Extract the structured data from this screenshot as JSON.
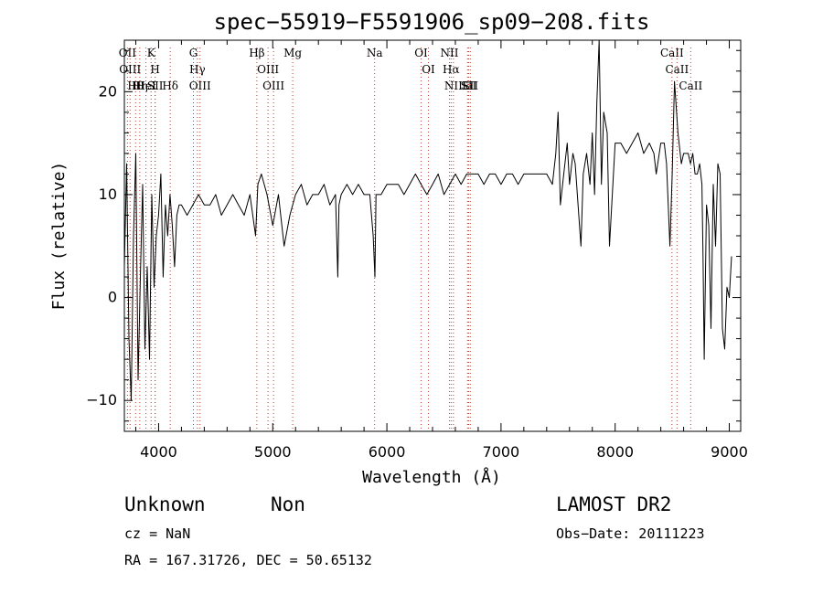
{
  "chart_data": {
    "type": "line",
    "title": "spec−55919−F5591906_sp09−208.fits",
    "xlabel": "Wavelength (Å)",
    "ylabel": "Flux (relative)",
    "xlim": [
      3700,
      9100
    ],
    "ylim": [
      -13,
      25
    ],
    "xticks": [
      4000,
      5000,
      6000,
      7000,
      8000,
      9000
    ],
    "yticks": [
      -10,
      0,
      10,
      20
    ],
    "ytick_labels": [
      "−10",
      "0",
      "10",
      "20"
    ],
    "grid": false,
    "line_color": "#000000",
    "marker_color": "#c0392b",
    "series": [
      {
        "x": [
          3700,
          3720,
          3740,
          3760,
          3780,
          3800,
          3820,
          3840,
          3860,
          3880,
          3900,
          3920,
          3940,
          3960,
          3980,
          4000,
          4020,
          4040,
          4060,
          4080,
          4100,
          4120,
          4140,
          4160,
          4180,
          4200,
          4250,
          4300,
          4350,
          4400,
          4450,
          4500,
          4550,
          4600,
          4650,
          4700,
          4750,
          4800,
          4850,
          4870,
          4900,
          4950,
          5000,
          5050,
          5100,
          5150,
          5200,
          5250,
          5300,
          5350,
          5400,
          5450,
          5500,
          5550,
          5570,
          5580,
          5600,
          5650,
          5700,
          5750,
          5800,
          5850,
          5880,
          5895,
          5905,
          5950,
          6000,
          6050,
          6100,
          6150,
          6200,
          6250,
          6300,
          6350,
          6400,
          6450,
          6500,
          6550,
          6600,
          6650,
          6700,
          6750,
          6800,
          6850,
          6900,
          6950,
          7000,
          7050,
          7100,
          7150,
          7200,
          7250,
          7300,
          7350,
          7400,
          7450,
          7480,
          7500,
          7520,
          7550,
          7580,
          7600,
          7630,
          7650,
          7700,
          7720,
          7750,
          7780,
          7800,
          7820,
          7840,
          7860,
          7880,
          7900,
          7930,
          7950,
          8000,
          8050,
          8100,
          8150,
          8200,
          8250,
          8300,
          8340,
          8360,
          8400,
          8430,
          8450,
          8480,
          8500,
          8520,
          8550,
          8580,
          8600,
          8620,
          8640,
          8660,
          8680,
          8700,
          8720,
          8740,
          8760,
          8770,
          8780,
          8800,
          8820,
          8840,
          8860,
          8880,
          8900,
          8920,
          8940,
          8960,
          8980,
          9000,
          9020
        ],
        "y": [
          3,
          13,
          -4,
          -10,
          6,
          14,
          -8,
          2,
          11,
          -5,
          3,
          -6,
          10,
          1,
          6,
          8,
          12,
          2,
          9,
          6,
          10,
          7,
          3,
          8,
          9,
          9,
          8,
          9,
          10,
          9,
          9,
          10,
          8,
          9,
          10,
          9,
          8,
          10,
          6,
          11,
          12,
          10,
          7,
          10,
          5,
          8,
          10,
          11,
          9,
          10,
          10,
          11,
          9,
          10,
          2,
          9,
          10,
          11,
          10,
          11,
          10,
          10,
          6,
          2,
          10,
          10,
          11,
          11,
          11,
          10,
          11,
          12,
          11,
          10,
          11,
          12,
          10,
          11,
          12,
          11,
          12,
          12,
          12,
          11,
          12,
          12,
          11,
          12,
          12,
          11,
          12,
          12,
          12,
          12,
          12,
          11,
          14,
          18,
          9,
          12,
          15,
          11,
          14,
          13,
          5,
          12,
          14,
          11,
          16,
          10,
          19,
          26,
          11,
          18,
          16,
          5,
          15,
          15,
          14,
          15,
          16,
          14,
          15,
          14,
          12,
          15,
          15,
          13,
          5,
          12,
          21,
          16,
          13,
          14,
          14,
          14,
          13,
          14,
          12,
          12,
          13,
          11,
          4,
          -6,
          9,
          7,
          -3,
          11,
          5,
          13,
          12,
          -3,
          -5,
          1,
          0,
          4
        ],
        "error_bars": false
      }
    ],
    "annotations": [
      {
        "x": 3727,
        "labels": [
          "OII"
        ]
      },
      {
        "x": 3750,
        "labels": [
          "OIII"
        ]
      },
      {
        "x": 3798,
        "labels": [
          "Hθ"
        ]
      },
      {
        "x": 3835,
        "labels": [
          "Hη"
        ]
      },
      {
        "x": 3889,
        "labels": [
          "HeI"
        ]
      },
      {
        "x": 3934,
        "labels": [
          "K"
        ]
      },
      {
        "x": 3969,
        "labels": [
          "H"
        ]
      },
      {
        "x": 3970,
        "labels": [
          "SII"
        ]
      },
      {
        "x": 4102,
        "labels": [
          "Hδ"
        ]
      },
      {
        "x": 4305,
        "labels": [
          "G"
        ]
      },
      {
        "x": 4340,
        "labels": [
          "Hγ"
        ]
      },
      {
        "x": 4363,
        "labels": [
          "OIII"
        ]
      },
      {
        "x": 4861,
        "labels": [
          "Hβ"
        ]
      },
      {
        "x": 4959,
        "labels": [
          "OIII"
        ]
      },
      {
        "x": 5007,
        "labels": [
          "OIII"
        ]
      },
      {
        "x": 5175,
        "labels": [
          "Mg"
        ]
      },
      {
        "x": 5893,
        "labels": [
          "Na"
        ]
      },
      {
        "x": 6300,
        "labels": [
          "OI"
        ]
      },
      {
        "x": 6364,
        "labels": [
          "OI"
        ]
      },
      {
        "x": 6548,
        "labels": [
          "NII"
        ]
      },
      {
        "x": 6563,
        "labels": [
          "Hα"
        ]
      },
      {
        "x": 6583,
        "labels": [
          "NII"
        ]
      },
      {
        "x": 6707,
        "labels": [
          "Li"
        ]
      },
      {
        "x": 6716,
        "labels": [
          "SII"
        ]
      },
      {
        "x": 6731,
        "labels": [
          "SII"
        ]
      },
      {
        "x": 8498,
        "labels": [
          "CaII"
        ]
      },
      {
        "x": 8542,
        "labels": [
          "CaII"
        ]
      },
      {
        "x": 8662,
        "labels": [
          "CaII"
        ]
      }
    ]
  },
  "info": {
    "class": "Unknown",
    "subclass": "Non",
    "cz": "cz = NaN",
    "coords": "RA = 167.31726, DEC =  50.65132",
    "survey": "LAMOST DR2",
    "obs_date": "Obs−Date: 20111223"
  }
}
